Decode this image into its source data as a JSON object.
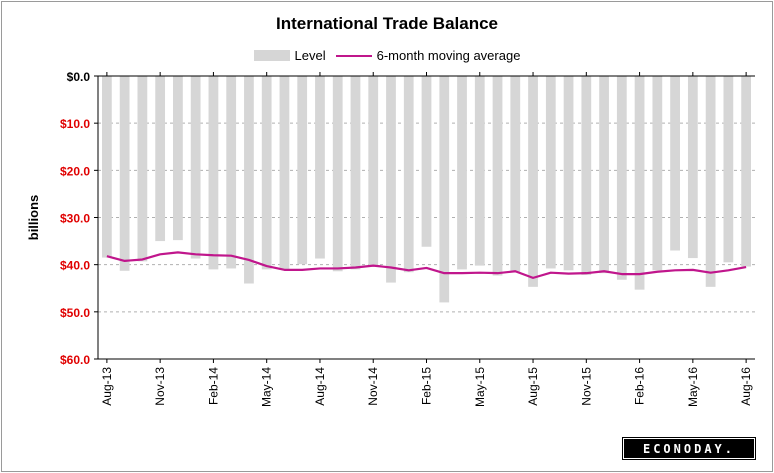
{
  "chart_data": {
    "type": "bar",
    "title": "International Trade Balance",
    "ylabel": "billions",
    "ylim": [
      -60,
      0
    ],
    "y_ticks": [
      0,
      -10,
      -20,
      -30,
      -40,
      -50,
      -60
    ],
    "y_tick_labels": [
      "$0.0",
      "$10.0",
      "$20.0",
      "$30.0",
      "$40.0",
      "$50.0",
      "$60.0"
    ],
    "x_tick_labels": [
      "Aug-13",
      "Nov-13",
      "Feb-14",
      "May-14",
      "Aug-14",
      "Nov-14",
      "Feb-15",
      "May-15",
      "Aug-15",
      "Nov-15",
      "Feb-16",
      "May-16",
      "Aug-16"
    ],
    "categories": [
      "Aug-13",
      "Sep-13",
      "Oct-13",
      "Nov-13",
      "Dec-13",
      "Jan-14",
      "Feb-14",
      "Mar-14",
      "Apr-14",
      "May-14",
      "Jun-14",
      "Jul-14",
      "Aug-14",
      "Sep-14",
      "Oct-14",
      "Nov-14",
      "Dec-14",
      "Jan-15",
      "Feb-15",
      "Mar-15",
      "Apr-15",
      "May-15",
      "Jun-15",
      "Jul-15",
      "Aug-15",
      "Sep-15",
      "Oct-15",
      "Nov-15",
      "Dec-15",
      "Jan-16",
      "Feb-16",
      "Mar-16",
      "Apr-16",
      "May-16",
      "Jun-16",
      "Jul-16",
      "Aug-16"
    ],
    "series": [
      {
        "name": "Level",
        "type": "bar",
        "color": "#d6d6d6",
        "values": [
          -38.5,
          -41.3,
          -39.3,
          -35.0,
          -34.8,
          -38.7,
          -41.0,
          -40.8,
          -44.0,
          -41.0,
          -40.9,
          -39.9,
          -38.7,
          -41.4,
          -41.0,
          -40.3,
          -43.8,
          -41.6,
          -36.2,
          -48.0,
          -41.0,
          -40.2,
          -42.3,
          -41.5,
          -44.7,
          -40.8,
          -41.2,
          -42.2,
          -41.8,
          -43.2,
          -45.3,
          -41.2,
          -37.0,
          -38.6,
          -44.7,
          -39.5,
          -40.4
        ]
      },
      {
        "name": "6-month moving average",
        "type": "line",
        "color": "#c0168c",
        "values": [
          -38.2,
          -39.2,
          -38.9,
          -37.8,
          -37.4,
          -37.8,
          -38.0,
          -38.1,
          -39.0,
          -40.3,
          -41.1,
          -41.1,
          -40.8,
          -40.8,
          -40.6,
          -40.2,
          -40.6,
          -41.2,
          -40.7,
          -41.8,
          -41.8,
          -41.7,
          -41.8,
          -41.4,
          -42.8,
          -41.7,
          -41.9,
          -41.8,
          -41.4,
          -42.0,
          -42.0,
          -41.5,
          -41.2,
          -41.1,
          -41.7,
          -41.2,
          -40.5
        ]
      }
    ],
    "legend_position": "top",
    "grid": true
  },
  "brand": {
    "logo_text": "ECONODAY."
  },
  "colors": {
    "negative_tick": "#e00000",
    "bar": "#d6d6d6",
    "line": "#c0168c"
  }
}
